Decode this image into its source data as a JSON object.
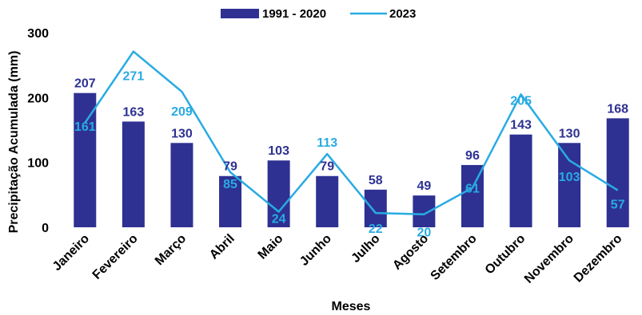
{
  "chart_data": {
    "type": "bar",
    "categories": [
      "Janeiro",
      "Fevereiro",
      "Março",
      "Abril",
      "Maio",
      "Junho",
      "Julho",
      "Agosto",
      "Setembro",
      "Outubro",
      "Novembro",
      "Dezembro"
    ],
    "series": [
      {
        "name": "1991 - 2020",
        "type": "bar",
        "values": [
          207,
          163,
          130,
          79,
          103,
          79,
          58,
          49,
          96,
          143,
          130,
          168
        ],
        "color": "#2e3192"
      },
      {
        "name": "2023",
        "type": "line",
        "values": [
          161,
          271,
          209,
          85,
          24,
          113,
          22,
          20,
          61,
          205,
          103,
          57
        ],
        "color": "#29abe2"
      }
    ],
    "xlabel": "Meses",
    "ylabel": "Precipitação Acumulada (mm)",
    "ylim": [
      0,
      300
    ],
    "yticks": [
      0,
      100,
      200,
      300
    ],
    "legend_position": "top-center",
    "grid": false
  }
}
